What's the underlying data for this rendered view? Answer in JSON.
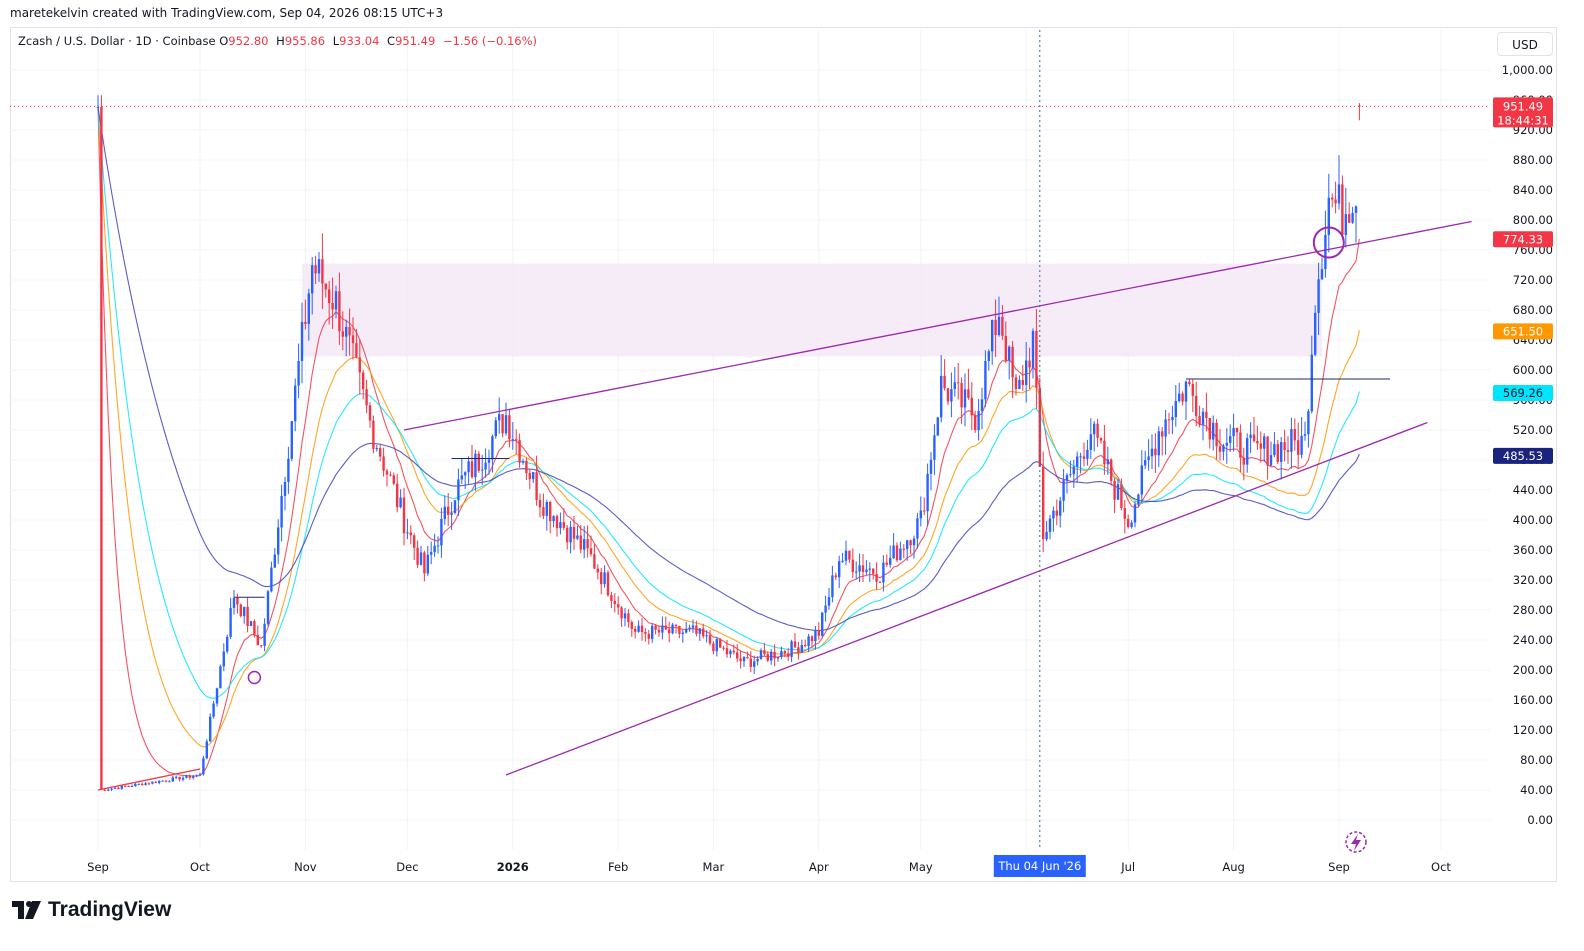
{
  "header": {
    "credit": "maretekelvin created with TradingView.com, Sep 04, 2026 08:15 UTC+3"
  },
  "legend": {
    "symbol": "Zcash / U.S. Dollar · 1D · Coinbase",
    "o_label": "O",
    "o_value": "952.80",
    "h_label": "H",
    "h_value": "955.86",
    "l_label": "L",
    "l_value": "933.04",
    "c_label": "C",
    "c_value": "951.49",
    "change": "−1.56 (−0.16%)"
  },
  "currency_button": "USD",
  "crosshair_date_label": "Thu 04 Jun '26",
  "price_labels": {
    "last_price": "951.49",
    "countdown": "18:44:31",
    "ma1": "774.33",
    "ma2": "651.50",
    "ma3": "569.26",
    "ma4": "485.53"
  },
  "colors": {
    "up": "#2962ff",
    "down": "#f23645",
    "ma1": "#f23645",
    "ma2": "#ff9800",
    "ma3": "#00e5ff",
    "ma4": "#3f3fbf",
    "trendline": "#9c27b0",
    "zone": "#f3e5f5",
    "crosshair_label": "#2962ff"
  },
  "footer": {
    "brand": "TradingView",
    "logo_icon": "tradingview-logo-icon"
  },
  "chart_data": {
    "type": "candlestick",
    "yticks": [
      "1,000.00",
      "960.00",
      "920.00",
      "880.00",
      "840.00",
      "800.00",
      "760.00",
      "720.00",
      "680.00",
      "640.00",
      "600.00",
      "560.00",
      "520.00",
      "480.00",
      "440.00",
      "400.00",
      "360.00",
      "320.00",
      "280.00",
      "240.00",
      "200.00",
      "160.00",
      "120.00",
      "80.00",
      "40.00",
      "0.00"
    ],
    "ylim": [
      -30,
      1030
    ],
    "xticks": [
      "Sep",
      "Oct",
      "Nov",
      "Dec",
      "2026",
      "Feb",
      "Mar",
      "Apr",
      "May",
      "Jun",
      "Jul",
      "Aug",
      "Sep",
      "Oct"
    ],
    "xtick_days": [
      0,
      30,
      61,
      91,
      122,
      153,
      181,
      212,
      242,
      273,
      303,
      334,
      365,
      395
    ],
    "key_prices": [
      {
        "day": 1,
        "price": 40
      },
      {
        "day": 30,
        "price": 60
      },
      {
        "day": 40,
        "price": 300
      },
      {
        "day": 48,
        "price": 230
      },
      {
        "day": 63,
        "price": 740
      },
      {
        "day": 70,
        "price": 690
      },
      {
        "day": 80,
        "price": 530
      },
      {
        "day": 90,
        "price": 400
      },
      {
        "day": 96,
        "price": 330
      },
      {
        "day": 105,
        "price": 440
      },
      {
        "day": 112,
        "price": 480
      },
      {
        "day": 120,
        "price": 540
      },
      {
        "day": 130,
        "price": 430
      },
      {
        "day": 145,
        "price": 350
      },
      {
        "day": 158,
        "price": 250
      },
      {
        "day": 175,
        "price": 250
      },
      {
        "day": 190,
        "price": 210
      },
      {
        "day": 205,
        "price": 230
      },
      {
        "day": 212,
        "price": 250
      },
      {
        "day": 218,
        "price": 350
      },
      {
        "day": 230,
        "price": 330
      },
      {
        "day": 242,
        "price": 400
      },
      {
        "day": 248,
        "price": 580
      },
      {
        "day": 258,
        "price": 540
      },
      {
        "day": 265,
        "price": 680
      },
      {
        "day": 270,
        "price": 560
      },
      {
        "day": 275,
        "price": 640
      },
      {
        "day": 278,
        "price": 380
      },
      {
        "day": 285,
        "price": 450
      },
      {
        "day": 292,
        "price": 520
      },
      {
        "day": 303,
        "price": 400
      },
      {
        "day": 312,
        "price": 520
      },
      {
        "day": 320,
        "price": 580
      },
      {
        "day": 330,
        "price": 510
      },
      {
        "day": 340,
        "price": 490
      },
      {
        "day": 355,
        "price": 505
      },
      {
        "day": 358,
        "price": 700
      },
      {
        "day": 362,
        "price": 830
      },
      {
        "day": 366,
        "price": 810
      },
      {
        "day": 370,
        "price": 845
      },
      {
        "day": 371,
        "price": 951.49
      }
    ],
    "trendlines": [
      {
        "name": "upper",
        "from": {
          "day": 90,
          "price": 520
        },
        "to": {
          "day": 404,
          "price": 798
        }
      },
      {
        "name": "lower",
        "from": {
          "day": 120,
          "price": 60
        },
        "to": {
          "day": 391,
          "price": 530
        }
      },
      {
        "name": "early",
        "from": {
          "day": 0,
          "price": 40
        },
        "to": {
          "day": 30,
          "price": 68
        }
      }
    ],
    "zone": {
      "from_day": 60,
      "to_day": 360,
      "top": 742,
      "bottom": 618
    },
    "hlines": [
      {
        "from_day": 40,
        "to_day": 49,
        "price": 297
      },
      {
        "from_day": 104,
        "to_day": 121,
        "price": 482
      },
      {
        "from_day": 320,
        "to_day": 380,
        "price": 588
      }
    ],
    "last_price": 951.49,
    "crosshair_day": 277,
    "moving_averages": [
      {
        "label": "774.33",
        "last": 774.33
      },
      {
        "label": "651.50",
        "last": 651.5
      },
      {
        "label": "569.26",
        "last": 569.26
      },
      {
        "label": "485.53",
        "last": 485.53
      }
    ]
  }
}
